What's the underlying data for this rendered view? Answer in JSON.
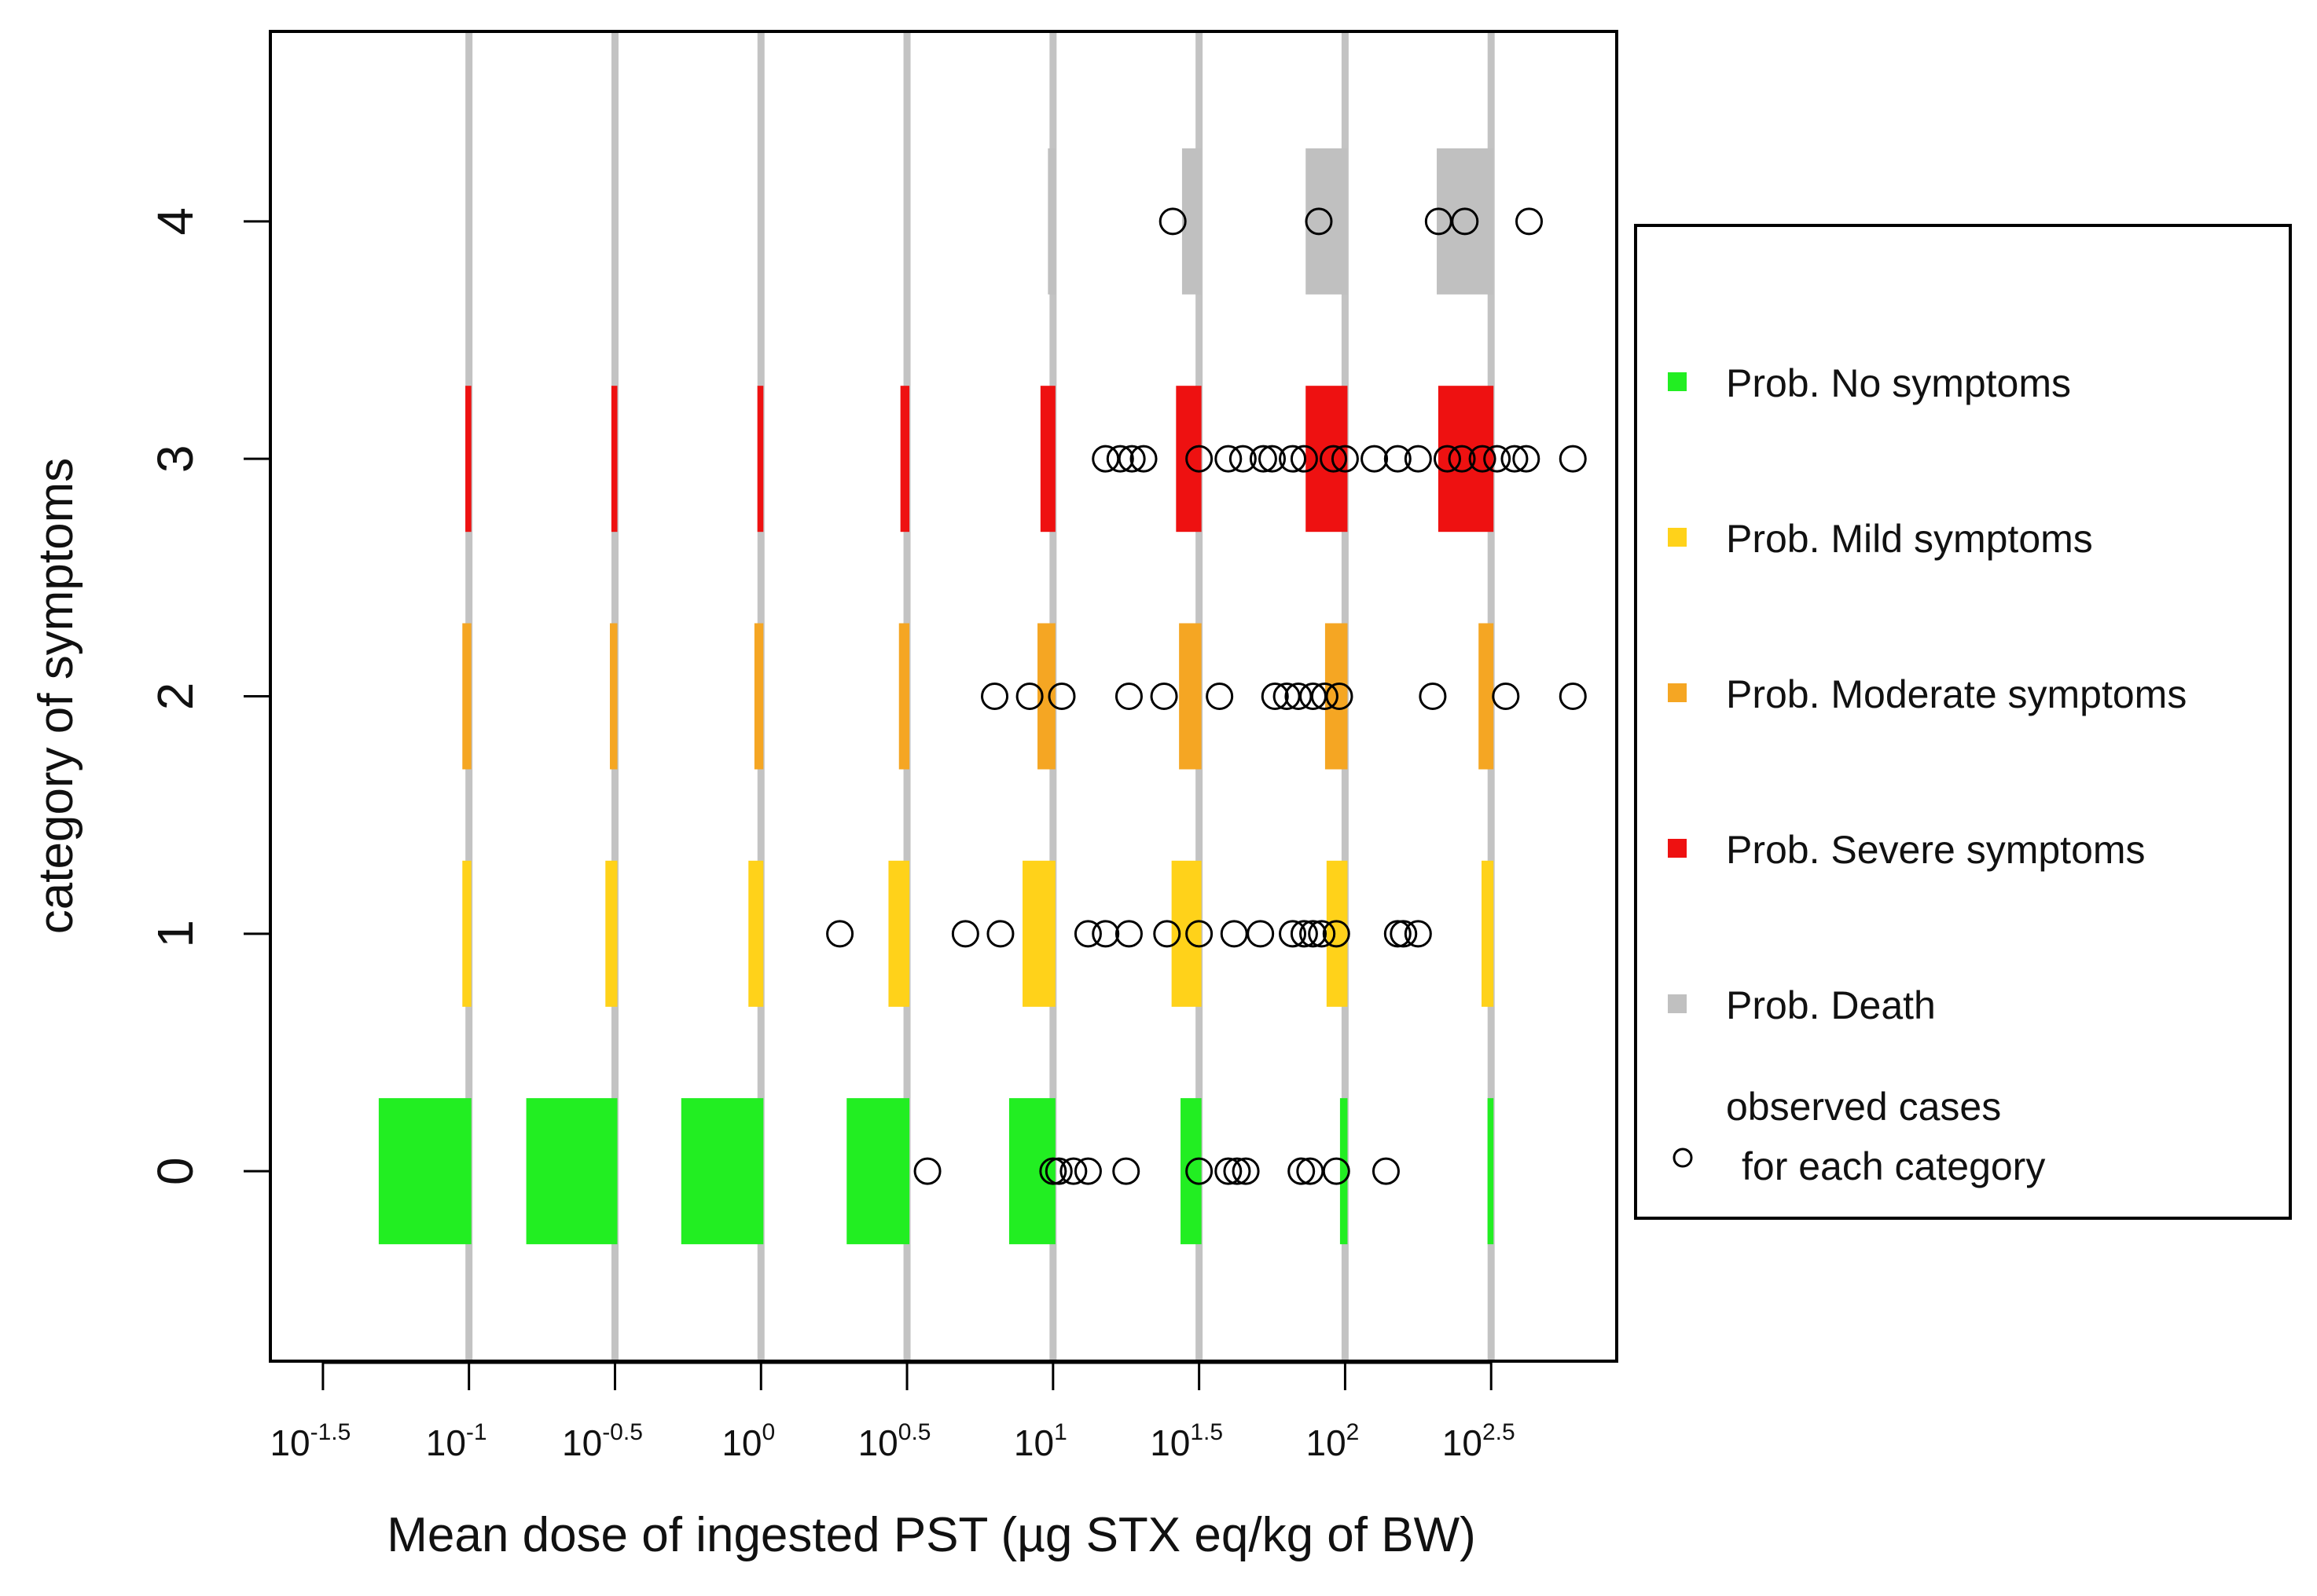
{
  "chart_data": {
    "type": "scatter",
    "title": "",
    "xlabel": "Mean dose of ingested PST (µg STX eq/kg of BW)",
    "ylabel": "category of symptoms",
    "x_scale": "log10",
    "xlim_log10": [
      -1.68,
      2.93
    ],
    "ylim": [
      -0.8,
      4.8
    ],
    "x_ticks": [
      {
        "base": "10",
        "exp": "-1.5",
        "log10": -1.5
      },
      {
        "base": "10",
        "exp": "-1",
        "log10": -1.0
      },
      {
        "base": "10",
        "exp": "-0.5",
        "log10": -0.5
      },
      {
        "base": "10",
        "exp": "0",
        "log10": 0.0
      },
      {
        "base": "10",
        "exp": "0.5",
        "log10": 0.5
      },
      {
        "base": "10",
        "exp": "1",
        "log10": 1.0
      },
      {
        "base": "10",
        "exp": "1.5",
        "log10": 1.5
      },
      {
        "base": "10",
        "exp": "2",
        "log10": 2.0
      },
      {
        "base": "10",
        "exp": "2.5",
        "log10": 2.5
      }
    ],
    "y_ticks": [
      "0",
      "1",
      "2",
      "3",
      "4"
    ],
    "reference_lines_log10": [
      -1.0,
      -0.5,
      0.0,
      0.5,
      1.0,
      1.5,
      2.0,
      2.5
    ],
    "probability_bars": {
      "description": "Predicted probability of each symptom category at each reference dose, shown as bar width",
      "dose_log10": [
        -1.0,
        -0.5,
        0.0,
        0.5,
        1.0,
        1.5,
        2.0,
        2.5
      ],
      "series": [
        {
          "name": "Prob. No symptoms",
          "category": 0,
          "color": "#22ee22",
          "values": [
            0.62,
            0.61,
            0.55,
            0.42,
            0.31,
            0.14,
            0.05,
            0.04
          ]
        },
        {
          "name": "Prob. Mild symptoms",
          "category": 1,
          "color": "#ffd21a",
          "values": [
            0.06,
            0.08,
            0.1,
            0.14,
            0.22,
            0.2,
            0.14,
            0.08
          ]
        },
        {
          "name": "Prob. Moderate symptoms",
          "category": 2,
          "color": "#f5a623",
          "values": [
            0.06,
            0.05,
            0.06,
            0.07,
            0.12,
            0.15,
            0.15,
            0.1
          ]
        },
        {
          "name": "Prob. Severe symptoms",
          "category": 3,
          "color": "#ee1111",
          "values": [
            0.04,
            0.04,
            0.04,
            0.06,
            0.1,
            0.17,
            0.28,
            0.37
          ]
        },
        {
          "name": "Prob. Death",
          "category": 4,
          "color": "#c0c0c0",
          "values": [
            0.0,
            0.0,
            0.0,
            0.0,
            0.05,
            0.13,
            0.28,
            0.38
          ]
        }
      ]
    },
    "observed_cases": {
      "name": "observed cases for each category",
      "log10_dose_by_category": {
        "0": [
          0.57,
          1.0,
          1.02,
          1.07,
          1.12,
          1.25,
          1.5,
          1.6,
          1.63,
          1.66,
          1.85,
          1.88,
          1.97,
          2.14
        ],
        "1": [
          0.27,
          0.7,
          0.82,
          1.12,
          1.18,
          1.26,
          1.39,
          1.5,
          1.62,
          1.71,
          1.82,
          1.86,
          1.89,
          1.92,
          1.97,
          2.18,
          2.2,
          2.25
        ],
        "2": [
          0.8,
          0.92,
          1.03,
          1.26,
          1.38,
          1.57,
          1.76,
          1.8,
          1.84,
          1.89,
          1.93,
          1.98,
          2.3,
          2.55,
          2.78
        ],
        "3": [
          1.18,
          1.23,
          1.27,
          1.31,
          1.5,
          1.6,
          1.65,
          1.72,
          1.75,
          1.82,
          1.86,
          1.96,
          2.0,
          2.1,
          2.18,
          2.25,
          2.35,
          2.4,
          2.47,
          2.52,
          2.58,
          2.62,
          2.78
        ],
        "4": [
          1.41,
          1.91,
          2.32,
          2.41,
          2.63
        ]
      }
    },
    "legend": {
      "position": "right",
      "entries": [
        {
          "label": "Prob. No symptoms",
          "color": "#22ee22",
          "marker": "square"
        },
        {
          "label": "Prob. Mild symptoms",
          "color": "#ffd21a",
          "marker": "square"
        },
        {
          "label": "Prob. Moderate symptoms",
          "color": "#f5a623",
          "marker": "square"
        },
        {
          "label": "Prob. Severe symptoms",
          "color": "#ee1111",
          "marker": "square"
        },
        {
          "label": "Prob. Death",
          "color": "#c0c0c0",
          "marker": "square"
        }
      ],
      "cases_label_line1": "observed cases",
      "cases_label_line2": "for each category"
    }
  }
}
